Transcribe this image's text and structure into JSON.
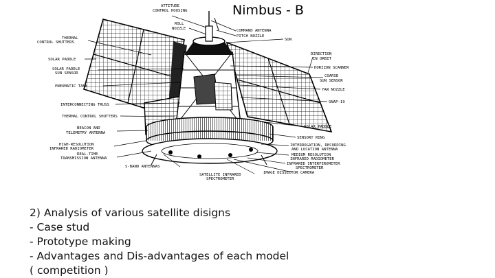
{
  "title": "Nimbus - B",
  "labels": {
    "attitude_housing": [
      "ATTITUDE",
      "CONTROL HOUSING"
    ],
    "roll_nozzle": [
      "ROLL",
      "NOZZLE"
    ],
    "command_antenna": "COMMAND ANTENNA",
    "pitch_nozzle": "PITCH NOZZLE",
    "sun": "SUN",
    "direction": [
      "DIRECTION",
      "IN ORBIT"
    ],
    "horizon_scanner": "HORIZON SCANNER",
    "coarse_sun_sensor": [
      "COARSE",
      "SUN SENSOR"
    ],
    "yaw_nozzle": "YAW NOZZLE",
    "snap": "SNAP-19",
    "solar_paddle_right": "SOLAR PADDLE",
    "sensory_ring": "SENSORY RING",
    "interrogation": [
      "INTERROGATION, RECORDING",
      "AND LOCATION ANTENNA"
    ],
    "medium_resolution": [
      "MEDIUM RESOLUTION",
      "INFRARED RADIOMETER"
    ],
    "infrared_interferometer": [
      "INFRARED INTERFEROMETER",
      "SPECTROMETER"
    ],
    "image_dissector": "IMAGE DISSECTOR CAMERA",
    "satellite_infrared": [
      "SATELLITE INFRARED",
      "SPECTROMETER"
    ],
    "s_band": "S-BAND ANTENNAS",
    "real_time": [
      "REAL-TIME",
      "TRANSMISSION ANTENNA"
    ],
    "high_resolution": [
      "HIGH-RESOLUTION",
      "INFRARED RADIOMETER"
    ],
    "beacon": [
      "BEACON AND",
      "TELEMETRY ANTENNA"
    ],
    "thermal_shutters_lower": "THERMAL CONTROL SHUTTERS",
    "interconnecting_truss": "INTERCONNECTING TRUSS",
    "pneumatic_tank": "PNEUMATIC TANK",
    "solar_paddle_sensor": [
      "SOLAR PADDLE",
      "SUN SENSOR"
    ],
    "solar_paddle_left": "SOLAR PADDLE",
    "thermal_shutters_upper": [
      "THERMAL",
      "CONTROL SHUTTERS"
    ]
  },
  "notes": [
    "2) Analysis of various satellite disigns",
    "- Case stud",
    "- Prototype making",
    "- Advantages and Dis-advantages of each model",
    "( competition )"
  ]
}
